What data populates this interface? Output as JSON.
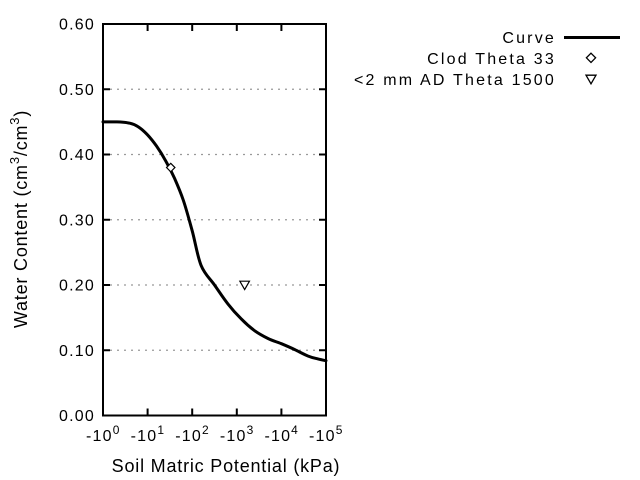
{
  "chart_data": {
    "type": "line",
    "title": "",
    "xlabel": "Soil Matric Potential (kPa)",
    "ylabel_plain": "Water Content (cm3/cm3)",
    "ylabel_parts": [
      {
        "t": "Water Content (cm"
      },
      {
        "t": "3",
        "sup": true
      },
      {
        "t": "/cm"
      },
      {
        "t": "3",
        "sup": true
      },
      {
        "t": ")"
      }
    ],
    "x_axis": {
      "scale": "log10 of negative matric potential (kPa)",
      "decade_min": 0,
      "decade_max": 5,
      "ticks": [
        {
          "base": "-10",
          "exp": "0"
        },
        {
          "base": "-10",
          "exp": "1"
        },
        {
          "base": "-10",
          "exp": "2"
        },
        {
          "base": "-10",
          "exp": "3"
        },
        {
          "base": "-10",
          "exp": "4"
        },
        {
          "base": "-10",
          "exp": "5"
        }
      ]
    },
    "y_axis": {
      "min": 0.0,
      "max": 0.6,
      "tick_step": 0.1,
      "ticks": [
        "0.00",
        "0.10",
        "0.20",
        "0.30",
        "0.40",
        "0.50",
        "0.60"
      ],
      "gridlines_at": [
        0.1,
        0.2,
        0.3,
        0.4,
        0.5
      ]
    },
    "grid": {
      "horizontal_dotted": true,
      "vertical": false,
      "color": "#999999"
    },
    "legend": {
      "position": "top-right, outside plot",
      "items": [
        {
          "label": "Curve",
          "marker": "line"
        },
        {
          "label": "Clod Theta 33",
          "marker": "open-diamond"
        },
        {
          "label": "<2 mm AD Theta 1500",
          "marker": "open-triangle-down"
        }
      ]
    },
    "series": [
      {
        "name": "Curve",
        "type": "line",
        "color": "#000000",
        "line_width": 3,
        "points_log10_theta": [
          [
            0.0,
            0.45
          ],
          [
            0.3,
            0.45
          ],
          [
            0.6,
            0.448
          ],
          [
            0.8,
            0.442
          ],
          [
            1.0,
            0.43
          ],
          [
            1.2,
            0.413
          ],
          [
            1.4,
            0.391
          ],
          [
            1.6,
            0.364
          ],
          [
            1.8,
            0.33
          ],
          [
            2.0,
            0.283
          ],
          [
            2.2,
            0.23
          ],
          [
            2.5,
            0.2
          ],
          [
            2.8,
            0.171
          ],
          [
            3.1,
            0.148
          ],
          [
            3.4,
            0.13
          ],
          [
            3.7,
            0.118
          ],
          [
            4.0,
            0.11
          ],
          [
            4.3,
            0.101
          ],
          [
            4.6,
            0.091
          ],
          [
            4.8,
            0.087
          ],
          [
            5.0,
            0.084
          ]
        ]
      },
      {
        "name": "Clod Theta 33",
        "type": "scatter",
        "marker": "open-diamond",
        "color": "#000000",
        "points_kpa_theta": [
          [
            -33,
            0.38
          ]
        ]
      },
      {
        "name": "<2 mm AD Theta 1500",
        "type": "scatter",
        "marker": "open-triangle-down",
        "color": "#000000",
        "points_kpa_theta": [
          [
            -1500,
            0.2
          ]
        ]
      }
    ],
    "colors": {
      "foreground": "#000000",
      "grid": "#999999",
      "background": "#ffffff"
    }
  }
}
